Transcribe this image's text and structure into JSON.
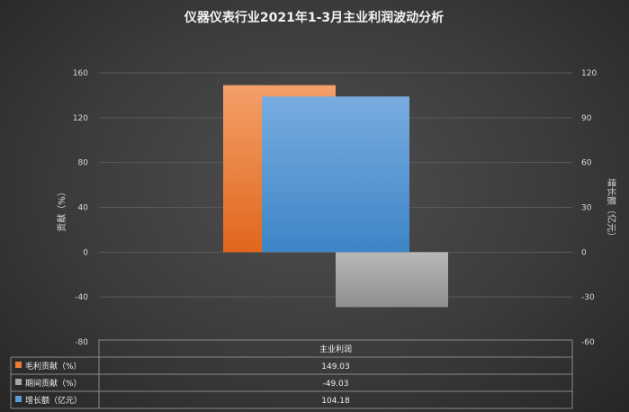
{
  "chart_data": {
    "type": "bar",
    "title": "仪器仪表行业2021年1-3月主业利润波动分析",
    "categories": [
      "主业利润"
    ],
    "ylabel_left": "贡献（%）",
    "ylabel_right": "增长额（亿元）",
    "ylim_left": [
      -80,
      160
    ],
    "ylim_right": [
      -60,
      120
    ],
    "yticks_left": [
      "160",
      "120",
      "80",
      "40",
      "0",
      "-40",
      "-80"
    ],
    "yticks_right": [
      "120",
      "90",
      "60",
      "30",
      "0",
      "-30",
      "-60"
    ],
    "grid": true,
    "legend": "data-table-bottom",
    "series": [
      {
        "name": "毛利贡献（%）",
        "values": [
          149.03
        ],
        "value_labels": [
          "149.03"
        ],
        "axis": "left",
        "color": "#ed7d31"
      },
      {
        "name": "期间贡献（%）",
        "values": [
          -49.03
        ],
        "value_labels": [
          "-49.03"
        ],
        "axis": "left",
        "color": "#a5a5a5"
      },
      {
        "name": "增长额（亿元）",
        "values": [
          104.18
        ],
        "value_labels": [
          "104.18"
        ],
        "axis": "right",
        "color": "#5b9bd5"
      }
    ]
  }
}
